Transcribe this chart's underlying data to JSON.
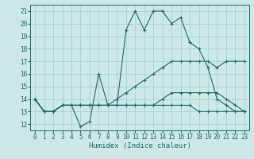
{
  "xlabel": "Humidex (Indice chaleur)",
  "xlim": [
    -0.5,
    23.5
  ],
  "ylim": [
    11.5,
    21.5
  ],
  "yticks": [
    12,
    13,
    14,
    15,
    16,
    17,
    18,
    19,
    20,
    21
  ],
  "xticks": [
    0,
    1,
    2,
    3,
    4,
    5,
    6,
    7,
    8,
    9,
    10,
    11,
    12,
    13,
    14,
    15,
    16,
    17,
    18,
    19,
    20,
    21,
    22,
    23
  ],
  "bg_color": "#cde8e6",
  "grid_color": "#9ecece",
  "line_color": "#1a6b6b",
  "x": [
    0,
    1,
    2,
    3,
    4,
    5,
    6,
    7,
    8,
    9,
    10,
    11,
    12,
    13,
    14,
    15,
    16,
    17,
    18,
    19,
    20,
    21,
    22,
    23
  ],
  "lines": [
    [
      14,
      13,
      13,
      13.5,
      13.5,
      11.8,
      12.2,
      16,
      13.5,
      13.5,
      19.5,
      21,
      19.5,
      21,
      21,
      20,
      20.5,
      18.5,
      18,
      16.5,
      14,
      13.5,
      13,
      13
    ],
    [
      14,
      13,
      13,
      13.5,
      13.5,
      13.5,
      13.5,
      13.5,
      13.5,
      14,
      14.5,
      15,
      15.5,
      16,
      16.5,
      17,
      17,
      17,
      17,
      17,
      16.5,
      17,
      17,
      17
    ],
    [
      14,
      13,
      13,
      13.5,
      13.5,
      13.5,
      13.5,
      13.5,
      13.5,
      13.5,
      13.5,
      13.5,
      13.5,
      13.5,
      13.5,
      13.5,
      13.5,
      13.5,
      13,
      13,
      13,
      13,
      13,
      13
    ],
    [
      14,
      13,
      13,
      13.5,
      13.5,
      13.5,
      13.5,
      13.5,
      13.5,
      13.5,
      13.5,
      13.5,
      13.5,
      13.5,
      14,
      14.5,
      14.5,
      14.5,
      14.5,
      14.5,
      14.5,
      14,
      13.5,
      13
    ]
  ]
}
